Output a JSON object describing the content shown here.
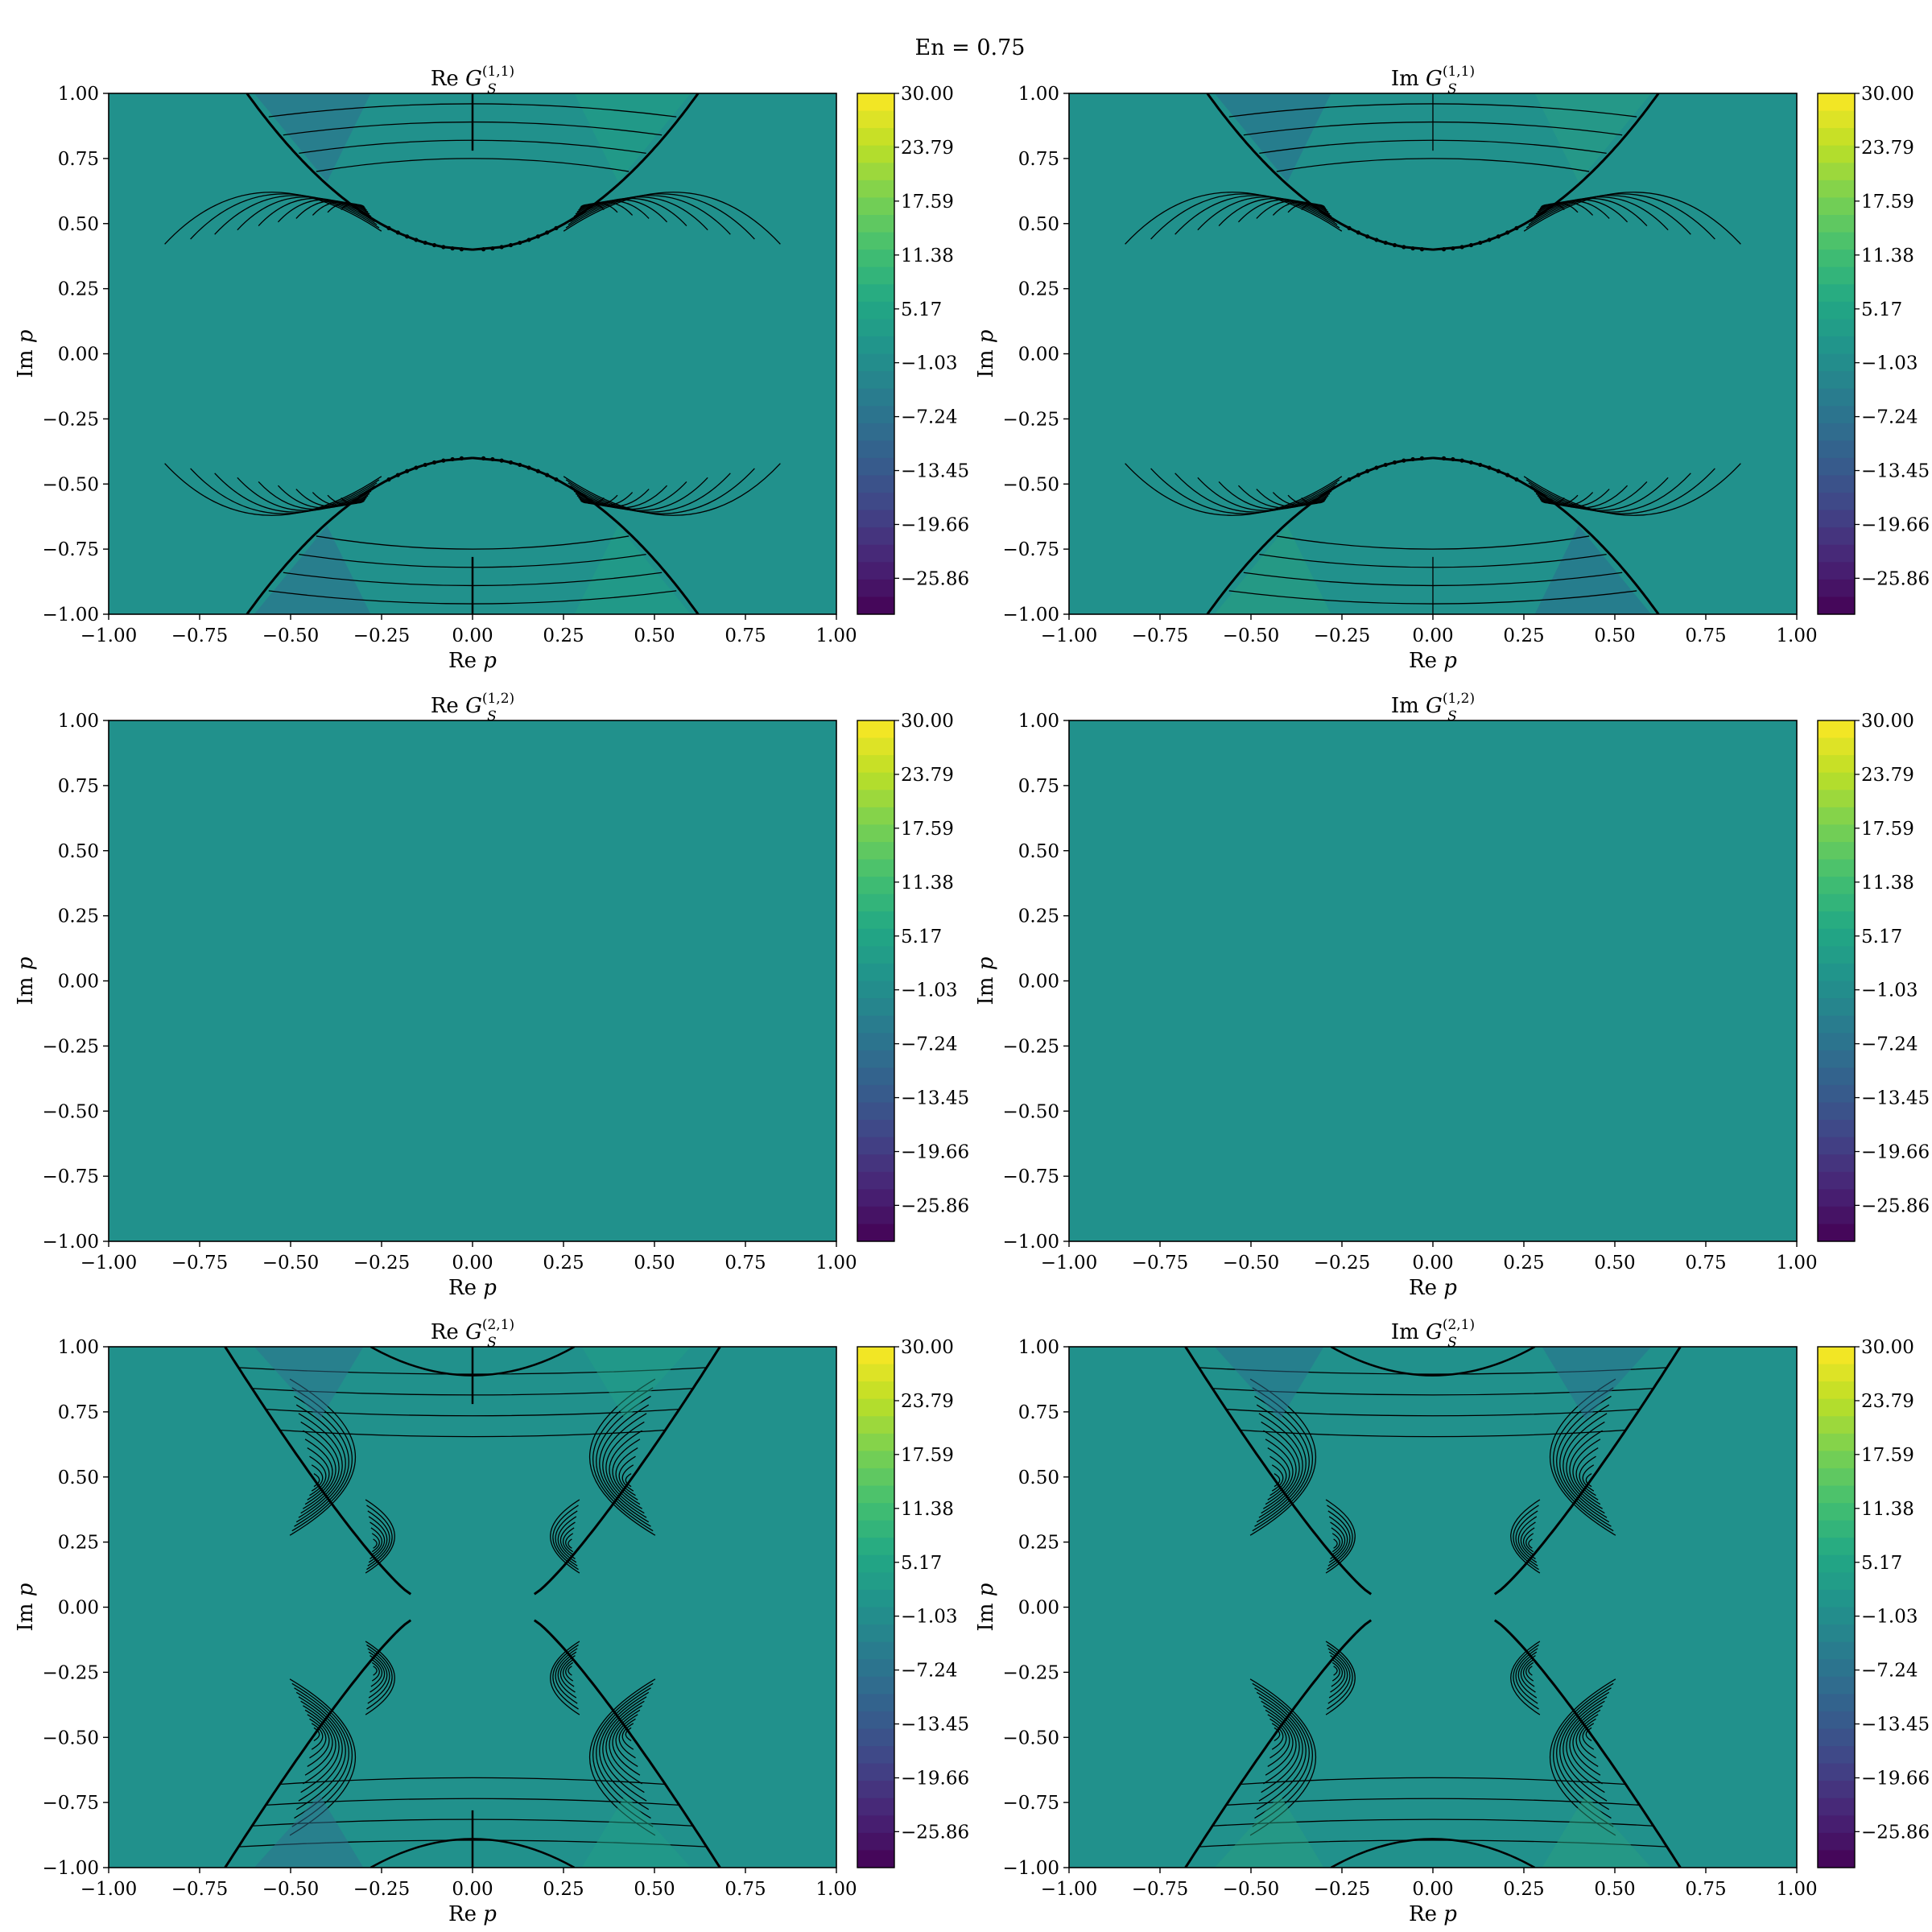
{
  "figure": {
    "suptitle": "En = 0.75"
  },
  "chart_data": [
    {
      "type": "heatmap",
      "panel": "re-g11",
      "title": {
        "prefix": "Re ",
        "symbol": "G",
        "sub": "S",
        "sup": "(1,1)"
      },
      "xlabel": {
        "text": "Re ",
        "var": "p"
      },
      "ylabel": {
        "text": "Im ",
        "var": "p"
      },
      "xlim": [
        -1.0,
        1.0
      ],
      "ylim": [
        -1.0,
        1.0
      ],
      "xticks": [
        "−1.00",
        "−0.75",
        "−0.50",
        "−0.25",
        "0.00",
        "0.25",
        "0.50",
        "0.75",
        "1.00"
      ],
      "yticks": [
        "1.00",
        "0.75",
        "0.50",
        "0.25",
        "0.00",
        "−0.25",
        "−0.50",
        "−0.75",
        "−1.00"
      ],
      "background_level": 0.5,
      "regions": "upper and lower parabolic lobes, vertex Im p = ±0.40, edge Re p = ±0.62 at Im p = ±1.00",
      "colorbar": {
        "min": -30.0,
        "max": 30.0,
        "ticks": [
          "30.00",
          "23.79",
          "17.59",
          "11.38",
          "5.17",
          "−1.03",
          "−7.24",
          "−13.45",
          "−19.66",
          "−25.86"
        ]
      }
    },
    {
      "type": "heatmap",
      "panel": "im-g11",
      "title": {
        "prefix": "Im ",
        "symbol": "G",
        "sub": "S",
        "sup": "(1,1)"
      },
      "xlabel": {
        "text": "Re ",
        "var": "p"
      },
      "ylabel": {
        "text": "Im ",
        "var": "p"
      },
      "xlim": [
        -1.0,
        1.0
      ],
      "ylim": [
        -1.0,
        1.0
      ],
      "xticks": [
        "−1.00",
        "−0.75",
        "−0.50",
        "−0.25",
        "0.00",
        "0.25",
        "0.50",
        "0.75",
        "1.00"
      ],
      "yticks": [
        "1.00",
        "0.75",
        "0.50",
        "0.25",
        "0.00",
        "−0.25",
        "−0.50",
        "−0.75",
        "−1.00"
      ],
      "background_level": 0.5,
      "regions": "upper and lower parabolic lobes, vertex Im p = ±0.40, edge Re p = ±0.62 at Im p = ±1.00",
      "colorbar": {
        "min": -30.0,
        "max": 30.0,
        "ticks": [
          "30.00",
          "23.79",
          "17.59",
          "11.38",
          "5.17",
          "−1.03",
          "−7.24",
          "−13.45",
          "−19.66",
          "−25.86"
        ]
      }
    },
    {
      "type": "heatmap",
      "panel": "re-g12",
      "title": {
        "prefix": "Re ",
        "symbol": "G",
        "sub": "S",
        "sup": "(1,2)"
      },
      "xlabel": {
        "text": "Re ",
        "var": "p"
      },
      "ylabel": {
        "text": "Im ",
        "var": "p"
      },
      "xlim": [
        -1.0,
        1.0
      ],
      "ylim": [
        -1.0,
        1.0
      ],
      "xticks": [
        "−1.00",
        "−0.75",
        "−0.50",
        "−0.25",
        "0.00",
        "0.25",
        "0.50",
        "0.75",
        "1.00"
      ],
      "yticks": [
        "1.00",
        "0.75",
        "0.50",
        "0.25",
        "0.00",
        "−0.25",
        "−0.50",
        "−0.75",
        "−1.00"
      ],
      "background_level": 0.5,
      "regions": "uniform",
      "colorbar": {
        "min": -30.0,
        "max": 30.0,
        "ticks": [
          "30.00",
          "23.79",
          "17.59",
          "11.38",
          "5.17",
          "−1.03",
          "−7.24",
          "−13.45",
          "−19.66",
          "−25.86"
        ]
      }
    },
    {
      "type": "heatmap",
      "panel": "im-g12",
      "title": {
        "prefix": "Im ",
        "symbol": "G",
        "sub": "S",
        "sup": "(1,2)"
      },
      "xlabel": {
        "text": "Re ",
        "var": "p"
      },
      "ylabel": {
        "text": "Im ",
        "var": "p"
      },
      "xlim": [
        -1.0,
        1.0
      ],
      "ylim": [
        -1.0,
        1.0
      ],
      "xticks": [
        "−1.00",
        "−0.75",
        "−0.50",
        "−0.25",
        "0.00",
        "0.25",
        "0.50",
        "0.75",
        "1.00"
      ],
      "yticks": [
        "1.00",
        "0.75",
        "0.50",
        "0.25",
        "0.00",
        "−0.25",
        "−0.50",
        "−0.75",
        "−1.00"
      ],
      "background_level": 0.5,
      "regions": "uniform",
      "colorbar": {
        "min": -30.0,
        "max": 30.0,
        "ticks": [
          "30.00",
          "23.79",
          "17.59",
          "11.38",
          "5.17",
          "−1.03",
          "−7.24",
          "−13.45",
          "−19.66",
          "−25.86"
        ]
      }
    },
    {
      "type": "heatmap",
      "panel": "re-g21",
      "title": {
        "prefix": "Re ",
        "symbol": "G",
        "sub": "S",
        "sup": "(2,1)"
      },
      "xlabel": {
        "text": "Re ",
        "var": "p"
      },
      "ylabel": {
        "text": "Im ",
        "var": "p"
      },
      "xlim": [
        -1.0,
        1.0
      ],
      "ylim": [
        -1.0,
        1.0
      ],
      "xticks": [
        "−1.00",
        "−0.75",
        "−0.50",
        "−0.25",
        "0.00",
        "0.25",
        "0.50",
        "0.75",
        "1.00"
      ],
      "yticks": [
        "1.00",
        "0.75",
        "0.50",
        "0.25",
        "0.00",
        "−0.25",
        "−0.50",
        "−0.75",
        "−1.00"
      ],
      "background_level": 0.5,
      "regions": "hourglass boundary, waist Re p = ±0.17 at Im p = ±0.05, edge Re p = ±0.68 at Im p = ±1.00",
      "colorbar": {
        "min": -30.0,
        "max": 30.0,
        "ticks": [
          "30.00",
          "23.79",
          "17.59",
          "11.38",
          "5.17",
          "−1.03",
          "−7.24",
          "−13.45",
          "−19.66",
          "−25.86"
        ]
      }
    },
    {
      "type": "heatmap",
      "panel": "im-g21",
      "title": {
        "prefix": "Im ",
        "symbol": "G",
        "sub": "S",
        "sup": "(2,1)"
      },
      "xlabel": {
        "text": "Re ",
        "var": "p"
      },
      "ylabel": {
        "text": "Im ",
        "var": "p"
      },
      "xlim": [
        -1.0,
        1.0
      ],
      "ylim": [
        -1.0,
        1.0
      ],
      "xticks": [
        "−1.00",
        "−0.75",
        "−0.50",
        "−0.25",
        "0.00",
        "0.25",
        "0.50",
        "0.75",
        "1.00"
      ],
      "yticks": [
        "1.00",
        "0.75",
        "0.50",
        "0.25",
        "0.00",
        "−0.25",
        "−0.50",
        "−0.75",
        "−1.00"
      ],
      "background_level": 0.5,
      "regions": "hourglass boundary, waist Re p = ±0.17 at Im p = ±0.05, edge Re p = ±0.68 at Im p = ±1.00",
      "colorbar": {
        "min": -30.0,
        "max": 30.0,
        "ticks": [
          "30.00",
          "23.79",
          "17.59",
          "11.38",
          "5.17",
          "−1.03",
          "−7.24",
          "−13.45",
          "−19.66",
          "−25.86"
        ]
      }
    }
  ],
  "colors": {
    "viridis": [
      "#440154",
      "#482475",
      "#414487",
      "#355f8d",
      "#2a788e",
      "#21918c",
      "#22a884",
      "#44bf70",
      "#7ad151",
      "#bddf26",
      "#fde725"
    ],
    "background": "#21918c",
    "contour_line": "#000000"
  }
}
